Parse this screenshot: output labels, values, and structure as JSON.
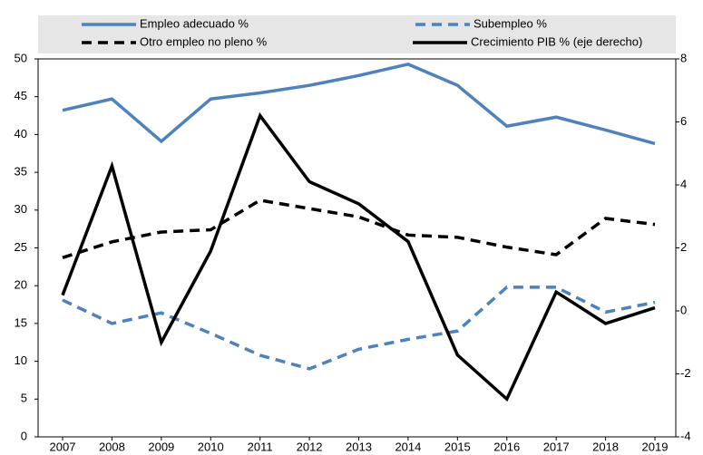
{
  "chart_data": {
    "type": "line",
    "categories": [
      "2007",
      "2008",
      "2009",
      "2010",
      "2011",
      "2012",
      "2013",
      "2014",
      "2015",
      "2016",
      "2017",
      "2018",
      "2019"
    ],
    "series": [
      {
        "name": "Empleo adecuado %",
        "color": "#4f81bd",
        "dash": "solid",
        "values": [
          43.2,
          44.7,
          39.1,
          44.7,
          45.5,
          46.5,
          47.8,
          49.3,
          46.5,
          41.1,
          42.3,
          40.6,
          38.8
        ]
      },
      {
        "name": "Subempleo %",
        "color": "#4f81bd",
        "dash": "dashed",
        "values": [
          18.1,
          15.0,
          16.4,
          13.7,
          10.8,
          9.0,
          11.6,
          12.9,
          14.0,
          19.8,
          19.8,
          16.5,
          17.8
        ]
      },
      {
        "name": "Otro empleo no pleno %",
        "color": "#000000",
        "dash": "dashed",
        "values": [
          23.7,
          25.8,
          27.1,
          27.4,
          31.3,
          30.2,
          29.1,
          26.7,
          26.4,
          25.1,
          24.1,
          28.9,
          28.1
        ]
      },
      {
        "name": "Crecimiento PIB % (eje derecho)",
        "color": "#000000",
        "dash": "solid",
        "axis": "y2",
        "values": [
          0.5,
          4.6,
          -1.0,
          1.9,
          6.2,
          4.1,
          3.4,
          2.2,
          -1.4,
          -2.8,
          0.6,
          -0.4,
          0.1
        ]
      }
    ],
    "ylim": [
      0,
      50
    ],
    "yticks": [
      0,
      5,
      10,
      15,
      20,
      25,
      30,
      35,
      40,
      45,
      50
    ],
    "y2lim": [
      -4,
      8
    ],
    "y2ticks": [
      -4,
      -2,
      0,
      2,
      4,
      6,
      8
    ]
  }
}
